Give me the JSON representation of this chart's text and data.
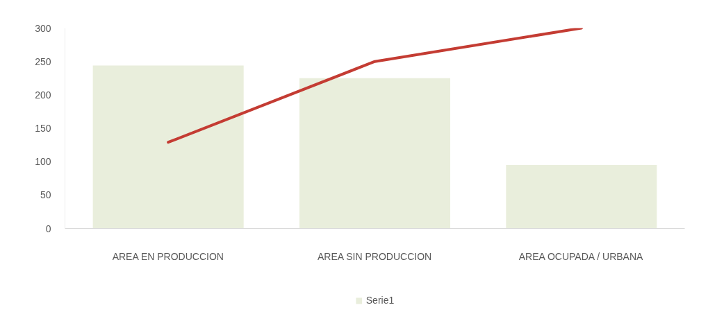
{
  "chart_data": {
    "type": "bar",
    "categories": [
      "AREA EN PRODUCCION",
      "AREA SIN PRODUCCION",
      "AREA OCUPADA / URBANA"
    ],
    "series": [
      {
        "name": "Serie1",
        "color": "#e9eedc",
        "values": [
          244,
          225,
          95
        ]
      },
      {
        "type": "line",
        "color": "#c43c33",
        "values": [
          129,
          250,
          300
        ]
      }
    ],
    "ylim": [
      0,
      300
    ],
    "yticks": [
      0,
      50,
      100,
      150,
      200,
      250,
      300
    ],
    "legend": "bottom"
  }
}
